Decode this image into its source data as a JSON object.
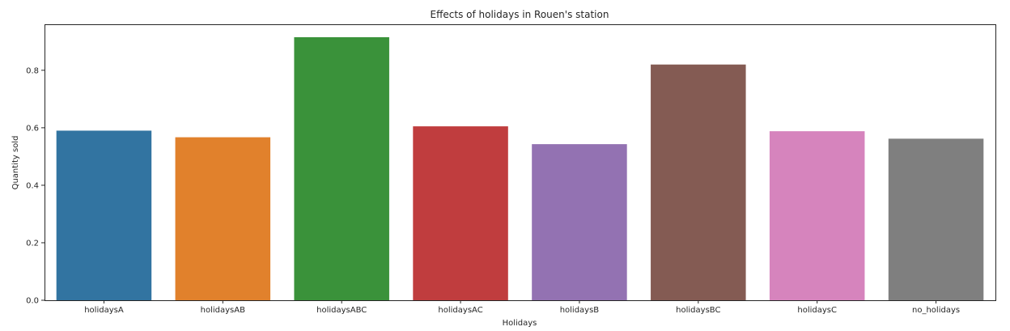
{
  "chart_data": {
    "type": "bar",
    "title": "Effects of holidays in Rouen's station",
    "xlabel": "Holidays",
    "ylabel": "Quantity sold",
    "categories": [
      "holidaysA",
      "holidaysAB",
      "holidaysABC",
      "holidaysAC",
      "holidaysB",
      "holidaysBC",
      "holidaysC",
      "no_holidays"
    ],
    "values": [
      0.59,
      0.567,
      0.915,
      0.605,
      0.543,
      0.82,
      0.588,
      0.562
    ],
    "colors": [
      "#3274a1",
      "#e1812c",
      "#3a923a",
      "#c03d3e",
      "#9372b2",
      "#845b53",
      "#d684bd",
      "#7f7f7f"
    ],
    "ylim": [
      0,
      0.96
    ],
    "yticks": [
      0.0,
      0.2,
      0.4,
      0.6,
      0.8
    ],
    "ytick_labels": [
      "0.0",
      "0.2",
      "0.4",
      "0.6",
      "0.8"
    ],
    "grid": false,
    "legend": "none"
  }
}
